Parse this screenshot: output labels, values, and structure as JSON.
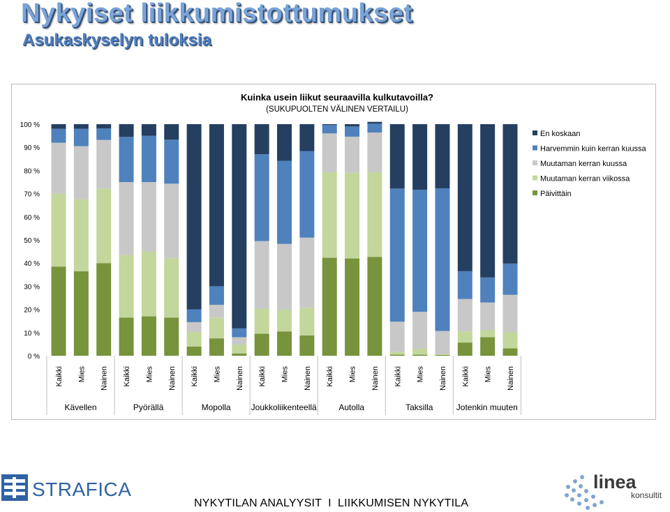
{
  "slide": {
    "title": "Nykyiset liikkumistottumukset",
    "subtitle": "Asukaskyselyn tuloksia",
    "footer": "NYKYTILAN ANALYYSIT  I  LIIKKUMISEN NYKYTILA"
  },
  "logos": {
    "strafica": "STRAFICA",
    "linea_top": "linea",
    "linea_bottom": "konsultit"
  },
  "chart_data": {
    "type": "bar",
    "stacked": true,
    "percent": true,
    "title": "Kuinka usein liikut seuraavilla kulkutavoilla?",
    "subtitle": "(SUKUPUOLTEN VÄLINEN VERTAILU)",
    "ylim": [
      0,
      100
    ],
    "yticks": [
      "0 %",
      "10 %",
      "20 %",
      "30 %",
      "40 %",
      "50 %",
      "60 %",
      "70 %",
      "80 %",
      "90 %",
      "100 %"
    ],
    "legend_position": "right",
    "grid": false,
    "groups": [
      "Kävellen",
      "Pyörällä",
      "Mopolla",
      "Joukkoliikenteellä",
      "Autolla",
      "Taksilla",
      "Jotenkin muuten"
    ],
    "subcategories": [
      "Kaikki",
      "Mies",
      "Nainen"
    ],
    "categories": [
      "Kaikki",
      "Mies",
      "Nainen",
      "Kaikki",
      "Mies",
      "Nainen",
      "Kaikki",
      "Mies",
      "Nainen",
      "Kaikki",
      "Mies",
      "Nainen",
      "Kaikki",
      "Mies",
      "Nainen",
      "Kaikki",
      "Mies",
      "Nainen",
      "Kaikki",
      "Mies",
      "Nainen"
    ],
    "series": [
      {
        "name": "Päivittäin",
        "color": "#77933c",
        "values": [
          38.5,
          36.5,
          40.0,
          16.5,
          17.0,
          16.5,
          4.0,
          7.5,
          1.0,
          9.5,
          10.5,
          8.8,
          42.3,
          42.0,
          42.7,
          0.5,
          0.5,
          0.3,
          5.7,
          8.0,
          3.2
        ]
      },
      {
        "name": "Muutaman kerran viikossa",
        "color": "#c3d69b",
        "values": [
          31.5,
          31.0,
          32.2,
          27.0,
          28.0,
          25.6,
          6.2,
          9.0,
          3.8,
          10.8,
          9.4,
          11.9,
          36.9,
          37.0,
          36.5,
          1.2,
          2.5,
          0.4,
          4.8,
          3.0,
          6.9
        ]
      },
      {
        "name": "Muutaman kerran kuussa",
        "color": "#c8c8c8",
        "values": [
          22.0,
          23.0,
          21.0,
          31.5,
          30.0,
          32.2,
          4.3,
          5.5,
          3.2,
          29.2,
          28.4,
          30.3,
          16.8,
          15.6,
          17.2,
          13.0,
          16.0,
          10.0,
          14.0,
          12.0,
          16.2
        ]
      },
      {
        "name": "Harvemmin kuin kerran kuussa",
        "color": "#4f81bd",
        "values": [
          6.0,
          7.5,
          5.0,
          19.5,
          20.0,
          19.0,
          5.5,
          8.0,
          3.8,
          37.5,
          35.9,
          37.4,
          3.6,
          4.4,
          3.8,
          57.5,
          52.7,
          61.6,
          12.0,
          10.8,
          13.5
        ]
      },
      {
        "name": "En koskaan",
        "color": "#243f60",
        "values": [
          2.0,
          2.0,
          1.8,
          5.5,
          5.0,
          6.7,
          80.0,
          70.0,
          88.2,
          13.0,
          15.8,
          11.6,
          0.4,
          1.0,
          0.8,
          27.8,
          28.3,
          27.7,
          63.5,
          66.2,
          60.2
        ]
      }
    ],
    "legend_order": [
      "En koskaan",
      "Harvemmin kuin kerran kuussa",
      "Muutaman kerran kuussa",
      "Muutaman kerran viikossa",
      "Päivittäin"
    ]
  }
}
